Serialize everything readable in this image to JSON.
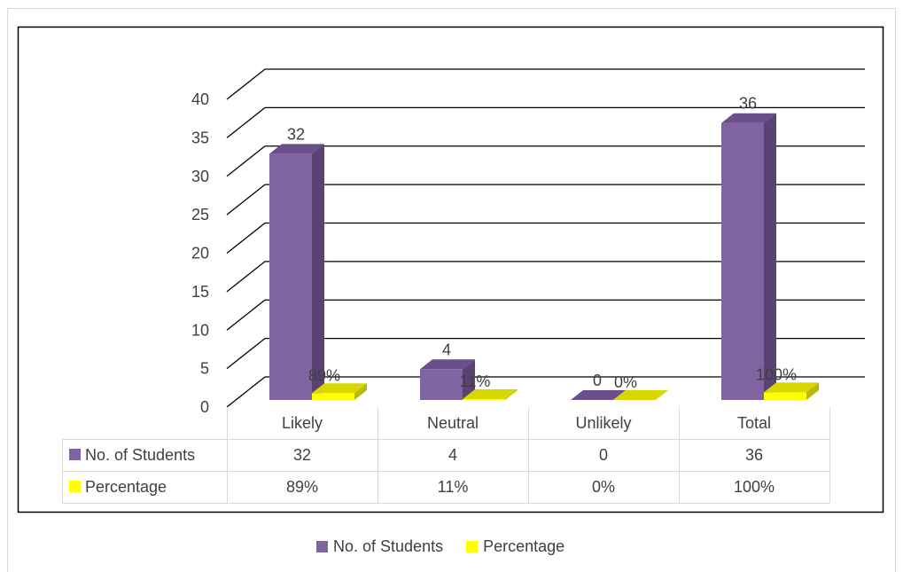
{
  "colors": {
    "students": "#8064A2",
    "students_top": "#6B4F8C",
    "students_side": "#5A4275",
    "percentage": "#FFFF00",
    "percentage_top": "#D8D800",
    "percentage_side": "#B9B900",
    "gridline": "#000000",
    "text": "#404040"
  },
  "chart_data": {
    "type": "bar",
    "categories": [
      "Likely",
      "Neutral",
      "Unlikely",
      "Total"
    ],
    "series": [
      {
        "name": "No. of Students",
        "values": [
          32,
          4,
          0,
          36
        ],
        "labels": [
          "32",
          "4",
          "0",
          "36"
        ],
        "table_row": [
          "32",
          "4",
          "0",
          "36"
        ]
      },
      {
        "name": "Percentage",
        "values": [
          0.89,
          0.11,
          0,
          1
        ],
        "labels": [
          "89%",
          "11%",
          "0%",
          "100%"
        ],
        "table_row": [
          "89%",
          "11%",
          "0%",
          "100%"
        ]
      }
    ],
    "ylim": [
      0,
      40
    ],
    "yticks": [
      "0",
      "5",
      "10",
      "15",
      "20",
      "25",
      "30",
      "35",
      "40"
    ],
    "grid": true,
    "data_table": true,
    "legend_position": "bottom"
  }
}
